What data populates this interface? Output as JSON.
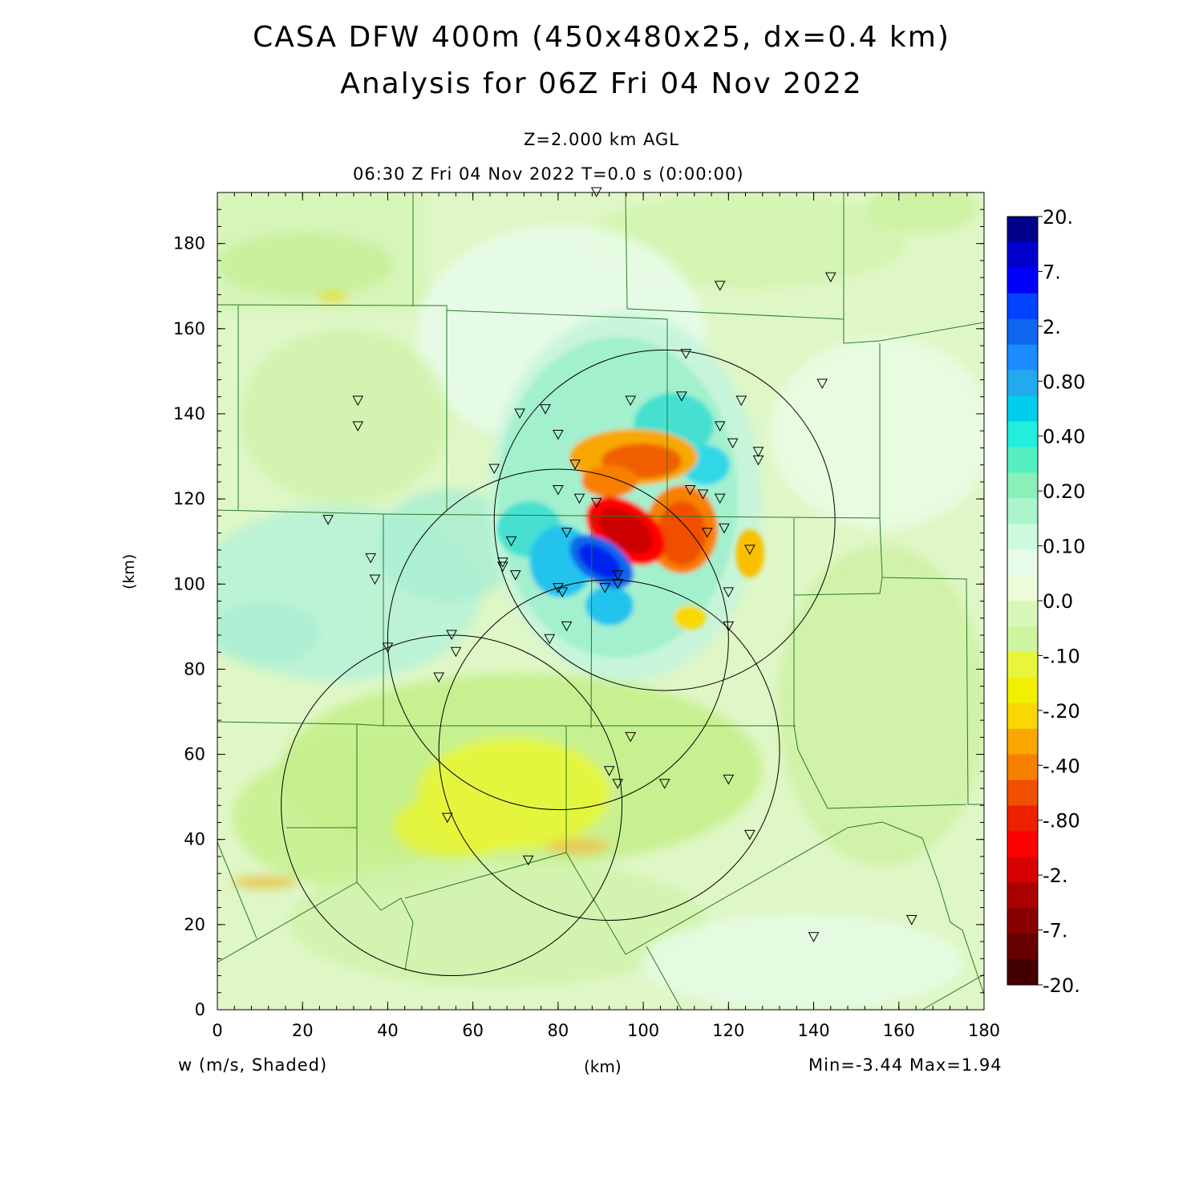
{
  "title_line1": "CASA DFW 400m (450x480x25, dx=0.4 km)",
  "title_line2": "Analysis for 06Z Fri 04 Nov 2022",
  "level_label": "Z=2.000 km AGL",
  "valid_time_label": "06:30 Z Fri 04 Nov 2022    T=0.0 s (0:00:00)",
  "variable_label": "w (m/s, Shaded)",
  "minmax_label": "Min=-3.44 Max=1.94",
  "chart_data": {
    "type": "heatmap",
    "title": "CASA DFW 400m (450x480x25, dx=0.4 km)",
    "subtitle": "Analysis for 06Z Fri 04 Nov 2022",
    "xlabel": "(km)",
    "ylabel": "(km)",
    "xlim": [
      0,
      180
    ],
    "ylim": [
      0,
      192
    ],
    "x_ticks": [
      0,
      20,
      40,
      60,
      80,
      100,
      120,
      140,
      160,
      180
    ],
    "y_ticks": [
      0,
      20,
      40,
      60,
      80,
      100,
      120,
      140,
      160,
      180
    ],
    "field": "w (m/s)",
    "min": -3.44,
    "max": 1.94,
    "colorbar": {
      "labels": [
        "20.",
        "7.",
        "2.",
        "0.80",
        "0.40",
        "0.20",
        "0.10",
        "0.0",
        "-.10",
        "-.20",
        "-.40",
        "-.80",
        "-2.",
        "-7.",
        "-20."
      ],
      "colors": [
        "#00008b",
        "#0000cd",
        "#0000ff",
        "#0044ff",
        "#1166ee",
        "#1a8cff",
        "#22aaee",
        "#00ccee",
        "#22eedd",
        "#55f0c0",
        "#88f0b8",
        "#aaf5cc",
        "#ccfadd",
        "#e6fce8",
        "#ecfcd8",
        "#d9f7b8",
        "#cdf5a0",
        "#e8f53a",
        "#f0f000",
        "#f8d800",
        "#f8a800",
        "#f88000",
        "#f05000",
        "#ee2000",
        "#ff0000",
        "#d80000",
        "#aa0000",
        "#880000",
        "#660000",
        "#440000"
      ]
    },
    "features": [
      {
        "kind": "downdraft",
        "x": 95,
        "y": 113,
        "peak_w": -3.44
      },
      {
        "kind": "updraft",
        "x": 89,
        "y": 106,
        "peak_w": 1.94
      },
      {
        "kind": "weak_downdraft_area",
        "x": 65,
        "y": 55,
        "w": -0.2
      }
    ],
    "radar_range_rings_km": [
      {
        "x": 105,
        "y": 115,
        "r": 40
      },
      {
        "x": 80,
        "y": 87,
        "r": 40
      },
      {
        "x": 92,
        "y": 61,
        "r": 40
      },
      {
        "x": 55,
        "y": 48,
        "r": 40
      }
    ],
    "station_markers": [
      [
        89,
        192
      ],
      [
        118,
        170
      ],
      [
        144,
        172
      ],
      [
        33,
        143
      ],
      [
        33,
        137
      ],
      [
        110,
        154
      ],
      [
        142,
        147
      ],
      [
        71,
        140
      ],
      [
        77,
        141
      ],
      [
        97,
        143
      ],
      [
        109,
        144
      ],
      [
        123,
        143
      ],
      [
        80,
        135
      ],
      [
        118,
        137
      ],
      [
        121,
        133
      ],
      [
        127,
        131
      ],
      [
        127,
        129
      ],
      [
        65,
        127
      ],
      [
        84,
        128
      ],
      [
        80,
        122
      ],
      [
        111,
        122
      ],
      [
        114,
        121
      ],
      [
        118,
        120
      ],
      [
        85,
        120
      ],
      [
        89,
        119
      ],
      [
        26,
        115
      ],
      [
        119,
        113
      ],
      [
        115,
        112
      ],
      [
        82,
        112
      ],
      [
        125,
        108
      ],
      [
        36,
        106
      ],
      [
        67,
        105
      ],
      [
        67,
        104
      ],
      [
        69,
        110
      ],
      [
        37,
        101
      ],
      [
        70,
        102
      ],
      [
        94,
        102
      ],
      [
        94,
        100
      ],
      [
        91,
        99
      ],
      [
        80,
        99
      ],
      [
        81,
        98
      ],
      [
        120,
        98
      ],
      [
        82,
        90
      ],
      [
        120,
        90
      ],
      [
        78,
        87
      ],
      [
        55,
        88
      ],
      [
        40,
        85
      ],
      [
        56,
        84
      ],
      [
        52,
        78
      ],
      [
        97,
        64
      ],
      [
        92,
        56
      ],
      [
        94,
        53
      ],
      [
        105,
        53
      ],
      [
        120,
        54
      ],
      [
        54,
        45
      ],
      [
        125,
        41
      ],
      [
        73,
        35
      ],
      [
        163,
        21
      ],
      [
        140,
        17
      ]
    ],
    "grid": false,
    "colorbar_position": "right"
  }
}
